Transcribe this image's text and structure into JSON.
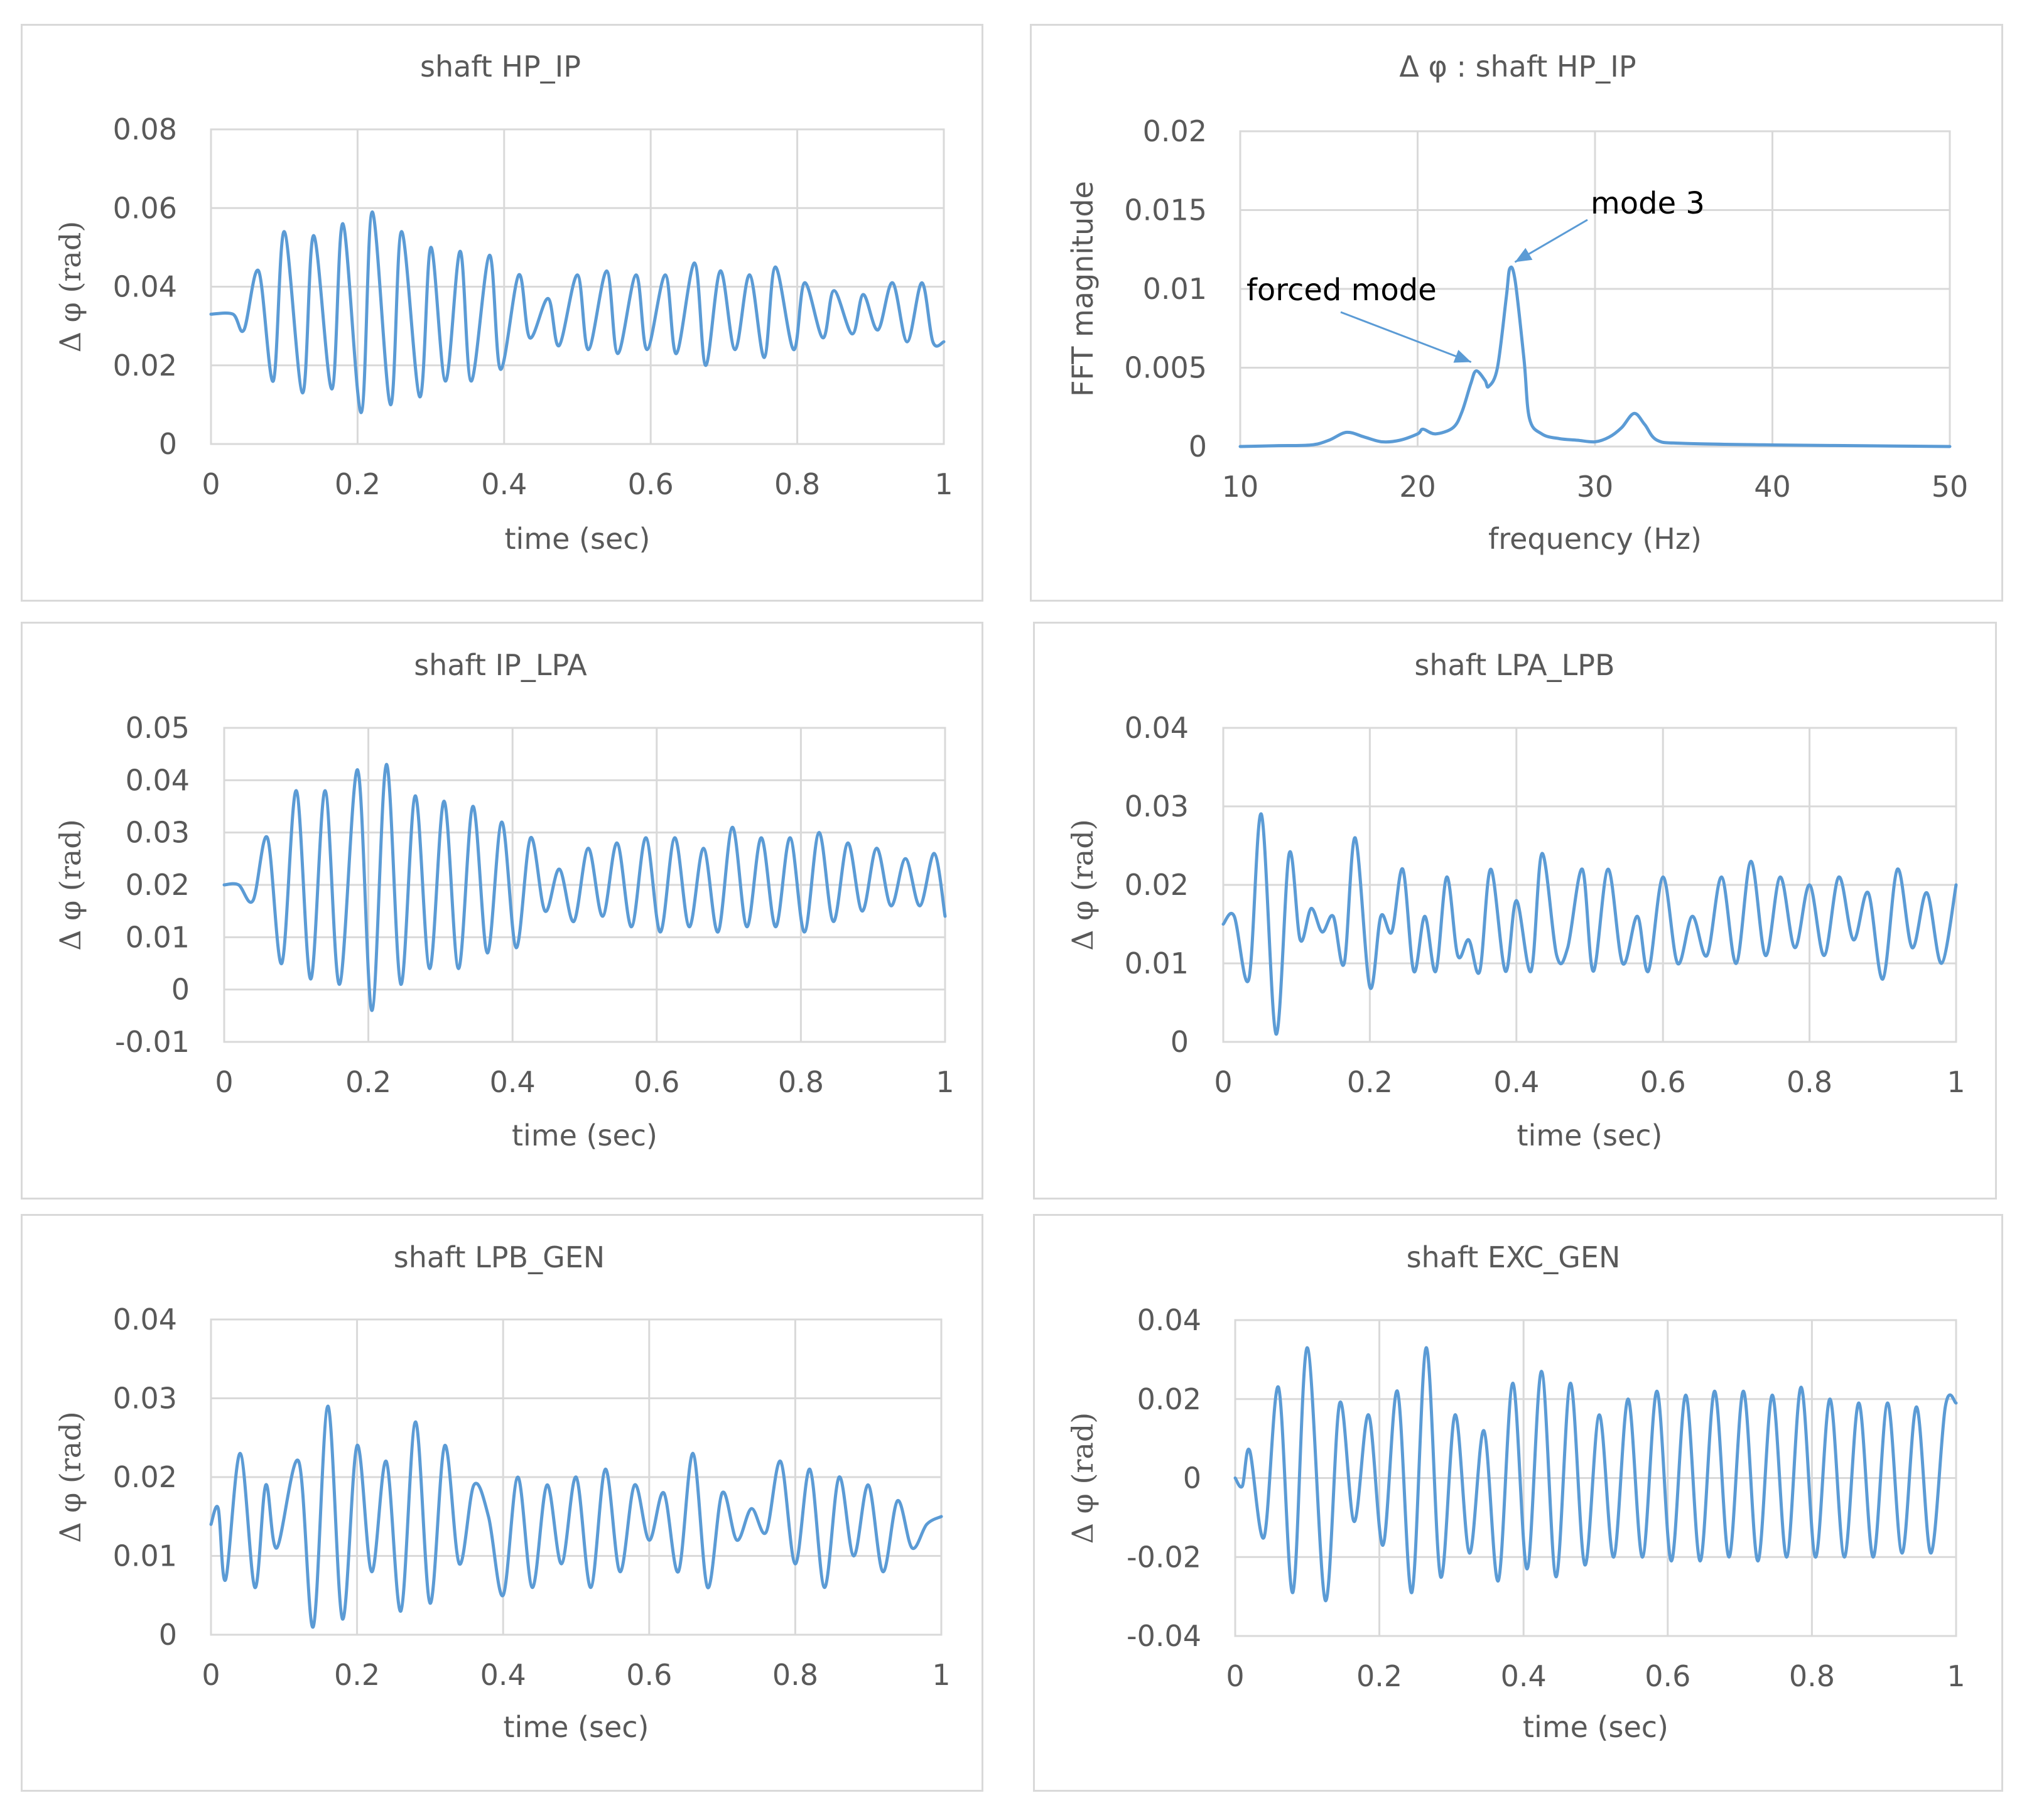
{
  "chart_data": [
    {
      "id": "hp_ip",
      "type": "line",
      "title": "shaft HP_IP",
      "xlabel": "time (sec)",
      "ylabel": "Δ φ (rad)",
      "xlim": [
        0,
        1
      ],
      "ylim": [
        0,
        0.08
      ],
      "xticks": [
        0,
        0.2,
        0.4,
        0.6,
        0.8,
        1
      ],
      "xtick_labels": [
        "0",
        "0.2",
        "0.4",
        "0.6",
        "0.8",
        "1"
      ],
      "yticks": [
        0,
        0.02,
        0.04,
        0.06,
        0.08
      ],
      "ytick_labels": [
        "0",
        "0.02",
        "0.04",
        "0.06",
        "0.08"
      ],
      "series": [
        {
          "name": "shaft HP_IP",
          "color": "#5b9bd5",
          "x": [
            0,
            0.03,
            0.045,
            0.065,
            0.085,
            0.1,
            0.125,
            0.14,
            0.165,
            0.18,
            0.205,
            0.22,
            0.245,
            0.26,
            0.285,
            0.3,
            0.32,
            0.34,
            0.355,
            0.38,
            0.395,
            0.42,
            0.435,
            0.46,
            0.475,
            0.5,
            0.515,
            0.54,
            0.555,
            0.58,
            0.595,
            0.62,
            0.635,
            0.66,
            0.675,
            0.695,
            0.715,
            0.735,
            0.755,
            0.77,
            0.795,
            0.81,
            0.835,
            0.85,
            0.875,
            0.89,
            0.91,
            0.93,
            0.95,
            0.97,
            0.985,
            1.0
          ],
          "y": [
            0.033,
            0.033,
            0.029,
            0.044,
            0.016,
            0.054,
            0.013,
            0.053,
            0.014,
            0.056,
            0.008,
            0.059,
            0.01,
            0.054,
            0.012,
            0.05,
            0.016,
            0.049,
            0.016,
            0.048,
            0.019,
            0.043,
            0.027,
            0.037,
            0.025,
            0.043,
            0.024,
            0.044,
            0.023,
            0.043,
            0.024,
            0.043,
            0.023,
            0.046,
            0.02,
            0.044,
            0.024,
            0.043,
            0.022,
            0.045,
            0.024,
            0.041,
            0.027,
            0.039,
            0.028,
            0.038,
            0.029,
            0.041,
            0.026,
            0.041,
            0.026,
            0.026
          ]
        }
      ]
    },
    {
      "id": "fft",
      "type": "line",
      "title": "Δ φ : shaft HP_IP",
      "xlabel": "frequency (Hz)",
      "ylabel": "FFT magnitude",
      "xlim": [
        10,
        50
      ],
      "ylim": [
        0,
        0.02
      ],
      "xticks": [
        10,
        20,
        30,
        40,
        50
      ],
      "xtick_labels": [
        "10",
        "20",
        "30",
        "40",
        "50"
      ],
      "yticks": [
        0,
        0.005,
        0.01,
        0.015,
        0.02
      ],
      "ytick_labels": [
        "0",
        "0.005",
        "0.01",
        "0.015",
        "0.02"
      ],
      "annotations": [
        {
          "text": "forced mode",
          "x": 23.3,
          "y": 0.0048
        },
        {
          "text": "mode 3",
          "x": 25.2,
          "y": 0.0113
        }
      ],
      "series": [
        {
          "name": "FFT magnitude",
          "color": "#5b9bd5",
          "x": [
            10,
            12,
            14,
            15,
            16,
            17,
            18,
            19,
            20,
            20.3,
            21,
            22,
            22.5,
            23,
            23.3,
            23.8,
            24,
            24.5,
            25,
            25.2,
            25.5,
            26,
            26.3,
            27,
            28,
            29,
            30,
            30.8,
            31.5,
            32.2,
            32.8,
            33.5,
            35,
            40,
            45,
            50
          ],
          "y": [
            0,
            5e-05,
            0.0001,
            0.0004,
            0.0009,
            0.0006,
            0.0003,
            0.0004,
            0.0008,
            0.0011,
            0.0008,
            0.0012,
            0.0022,
            0.004,
            0.0048,
            0.0042,
            0.0038,
            0.005,
            0.0095,
            0.0113,
            0.0105,
            0.0055,
            0.0018,
            0.0008,
            0.0005,
            0.0004,
            0.0003,
            0.0006,
            0.0012,
            0.0021,
            0.0014,
            0.0004,
            0.0002,
            0.0001,
            5e-05,
            0
          ]
        }
      ]
    },
    {
      "id": "ip_lpa",
      "type": "line",
      "title": "shaft IP_LPA",
      "xlabel": "time (sec)",
      "ylabel": "Δ φ (rad)",
      "xlim": [
        0,
        1
      ],
      "ylim": [
        -0.01,
        0.05
      ],
      "xticks": [
        0,
        0.2,
        0.4,
        0.6,
        0.8,
        1
      ],
      "xtick_labels": [
        "0",
        "0.2",
        "0.4",
        "0.6",
        "0.8",
        "1"
      ],
      "yticks": [
        -0.01,
        0,
        0.01,
        0.02,
        0.03,
        0.04,
        0.05
      ],
      "ytick_labels": [
        "-0.01",
        "0",
        "0.01",
        "0.02",
        "0.03",
        "0.04",
        "0.05"
      ],
      "series": [
        {
          "name": "shaft IP_LPA",
          "color": "#5b9bd5",
          "x": [
            0,
            0.02,
            0.04,
            0.06,
            0.08,
            0.1,
            0.12,
            0.14,
            0.16,
            0.185,
            0.205,
            0.225,
            0.245,
            0.265,
            0.285,
            0.305,
            0.325,
            0.345,
            0.365,
            0.385,
            0.405,
            0.425,
            0.445,
            0.465,
            0.485,
            0.505,
            0.525,
            0.545,
            0.565,
            0.585,
            0.605,
            0.625,
            0.645,
            0.665,
            0.685,
            0.705,
            0.725,
            0.745,
            0.765,
            0.785,
            0.805,
            0.825,
            0.845,
            0.865,
            0.885,
            0.905,
            0.925,
            0.945,
            0.965,
            0.985,
            1.0
          ],
          "y": [
            0.02,
            0.02,
            0.017,
            0.029,
            0.005,
            0.038,
            0.002,
            0.038,
            0.001,
            0.042,
            -0.004,
            0.043,
            0.001,
            0.037,
            0.004,
            0.036,
            0.004,
            0.035,
            0.007,
            0.032,
            0.008,
            0.029,
            0.015,
            0.023,
            0.013,
            0.027,
            0.014,
            0.028,
            0.012,
            0.029,
            0.011,
            0.029,
            0.012,
            0.027,
            0.011,
            0.031,
            0.012,
            0.029,
            0.012,
            0.029,
            0.011,
            0.03,
            0.013,
            0.028,
            0.015,
            0.027,
            0.016,
            0.025,
            0.016,
            0.026,
            0.014
          ]
        }
      ]
    },
    {
      "id": "lpa_lpb",
      "type": "line",
      "title": "shaft LPA_LPB",
      "xlabel": "time (sec)",
      "ylabel": "Δ φ (rad)",
      "xlim": [
        0,
        1
      ],
      "ylim": [
        0,
        0.04
      ],
      "xticks": [
        0,
        0.2,
        0.4,
        0.6,
        0.8,
        1
      ],
      "xtick_labels": [
        "0",
        "0.2",
        "0.4",
        "0.6",
        "0.8",
        "1"
      ],
      "yticks": [
        0,
        0.01,
        0.02,
        0.03,
        0.04
      ],
      "ytick_labels": [
        "0",
        "0.01",
        "0.02",
        "0.03",
        "0.04"
      ],
      "series": [
        {
          "name": "shaft LPA_LPB",
          "color": "#5b9bd5",
          "x": [
            0,
            0.015,
            0.035,
            0.052,
            0.072,
            0.09,
            0.105,
            0.12,
            0.135,
            0.15,
            0.165,
            0.18,
            0.2,
            0.215,
            0.23,
            0.245,
            0.26,
            0.275,
            0.29,
            0.305,
            0.32,
            0.335,
            0.35,
            0.365,
            0.385,
            0.4,
            0.42,
            0.435,
            0.455,
            0.47,
            0.49,
            0.505,
            0.525,
            0.545,
            0.565,
            0.58,
            0.6,
            0.62,
            0.64,
            0.66,
            0.68,
            0.7,
            0.72,
            0.74,
            0.76,
            0.78,
            0.8,
            0.82,
            0.84,
            0.86,
            0.88,
            0.9,
            0.92,
            0.94,
            0.96,
            0.98,
            1.0
          ],
          "y": [
            0.015,
            0.016,
            0.008,
            0.029,
            0.001,
            0.024,
            0.013,
            0.017,
            0.014,
            0.016,
            0.01,
            0.026,
            0.007,
            0.016,
            0.014,
            0.022,
            0.009,
            0.016,
            0.009,
            0.021,
            0.011,
            0.013,
            0.009,
            0.022,
            0.009,
            0.018,
            0.009,
            0.024,
            0.011,
            0.012,
            0.022,
            0.009,
            0.022,
            0.01,
            0.016,
            0.009,
            0.021,
            0.01,
            0.016,
            0.011,
            0.021,
            0.01,
            0.023,
            0.011,
            0.021,
            0.012,
            0.02,
            0.011,
            0.021,
            0.013,
            0.019,
            0.008,
            0.022,
            0.012,
            0.019,
            0.01,
            0.02
          ]
        }
      ]
    },
    {
      "id": "lpb_gen",
      "type": "line",
      "title": "shaft LPB_GEN",
      "xlabel": "time (sec)",
      "ylabel": "Δ φ (rad)",
      "xlim": [
        0,
        1
      ],
      "ylim": [
        0,
        0.04
      ],
      "xticks": [
        0,
        0.2,
        0.4,
        0.6,
        0.8,
        1
      ],
      "xtick_labels": [
        "0",
        "0.2",
        "0.4",
        "0.6",
        "0.8",
        "1"
      ],
      "yticks": [
        0,
        0.01,
        0.02,
        0.03,
        0.04
      ],
      "ytick_labels": [
        "0",
        "0.01",
        "0.02",
        "0.03",
        "0.04"
      ],
      "series": [
        {
          "name": "shaft LPB_GEN",
          "color": "#5b9bd5",
          "x": [
            0,
            0.01,
            0.02,
            0.04,
            0.06,
            0.075,
            0.09,
            0.12,
            0.14,
            0.16,
            0.18,
            0.2,
            0.22,
            0.24,
            0.26,
            0.28,
            0.3,
            0.32,
            0.34,
            0.36,
            0.38,
            0.4,
            0.42,
            0.44,
            0.46,
            0.48,
            0.5,
            0.52,
            0.54,
            0.56,
            0.58,
            0.6,
            0.62,
            0.64,
            0.66,
            0.68,
            0.7,
            0.72,
            0.74,
            0.76,
            0.78,
            0.8,
            0.82,
            0.84,
            0.86,
            0.88,
            0.9,
            0.92,
            0.94,
            0.96,
            0.98,
            1.0
          ],
          "y": [
            0.014,
            0.016,
            0.007,
            0.023,
            0.006,
            0.019,
            0.011,
            0.022,
            0.001,
            0.029,
            0.002,
            0.024,
            0.008,
            0.022,
            0.003,
            0.027,
            0.004,
            0.024,
            0.009,
            0.019,
            0.015,
            0.005,
            0.02,
            0.006,
            0.019,
            0.009,
            0.02,
            0.006,
            0.021,
            0.008,
            0.019,
            0.012,
            0.018,
            0.008,
            0.023,
            0.006,
            0.018,
            0.012,
            0.016,
            0.013,
            0.022,
            0.009,
            0.021,
            0.006,
            0.02,
            0.01,
            0.019,
            0.008,
            0.017,
            0.011,
            0.014,
            0.015
          ]
        }
      ]
    },
    {
      "id": "exc_gen",
      "type": "line",
      "title": "shaft EXC_GEN",
      "xlabel": "time (sec)",
      "ylabel": "Δ φ (rad)",
      "xlim": [
        0,
        1
      ],
      "ylim": [
        -0.04,
        0.04
      ],
      "xticks": [
        0,
        0.2,
        0.4,
        0.6,
        0.8,
        1
      ],
      "xtick_labels": [
        "0",
        "0.2",
        "0.4",
        "0.6",
        "0.8",
        "1"
      ],
      "yticks": [
        -0.04,
        -0.02,
        0,
        0.02,
        0.04
      ],
      "ytick_labels": [
        "-0.04",
        "-0.02",
        "0",
        "0.02",
        "0.04"
      ],
      "series": [
        {
          "name": "shaft EXC_GEN",
          "color": "#5b9bd5",
          "x": [
            0,
            0.01,
            0.02,
            0.04,
            0.06,
            0.08,
            0.1,
            0.125,
            0.145,
            0.165,
            0.185,
            0.205,
            0.225,
            0.245,
            0.265,
            0.285,
            0.305,
            0.325,
            0.345,
            0.365,
            0.385,
            0.405,
            0.425,
            0.445,
            0.465,
            0.485,
            0.505,
            0.525,
            0.545,
            0.565,
            0.585,
            0.605,
            0.625,
            0.645,
            0.665,
            0.685,
            0.705,
            0.725,
            0.745,
            0.765,
            0.785,
            0.805,
            0.825,
            0.845,
            0.865,
            0.885,
            0.905,
            0.925,
            0.945,
            0.965,
            0.985,
            1.0
          ],
          "y": [
            0,
            -0.002,
            0.007,
            -0.015,
            0.023,
            -0.029,
            0.033,
            -0.031,
            0.019,
            -0.011,
            0.016,
            -0.017,
            0.022,
            -0.029,
            0.033,
            -0.025,
            0.016,
            -0.019,
            0.012,
            -0.026,
            0.024,
            -0.023,
            0.027,
            -0.025,
            0.024,
            -0.022,
            0.016,
            -0.02,
            0.02,
            -0.02,
            0.022,
            -0.021,
            0.021,
            -0.021,
            0.022,
            -0.02,
            0.022,
            -0.021,
            0.021,
            -0.02,
            0.023,
            -0.02,
            0.02,
            -0.02,
            0.019,
            -0.02,
            0.019,
            -0.019,
            0.018,
            -0.019,
            0.018,
            0.019
          ]
        }
      ]
    }
  ]
}
